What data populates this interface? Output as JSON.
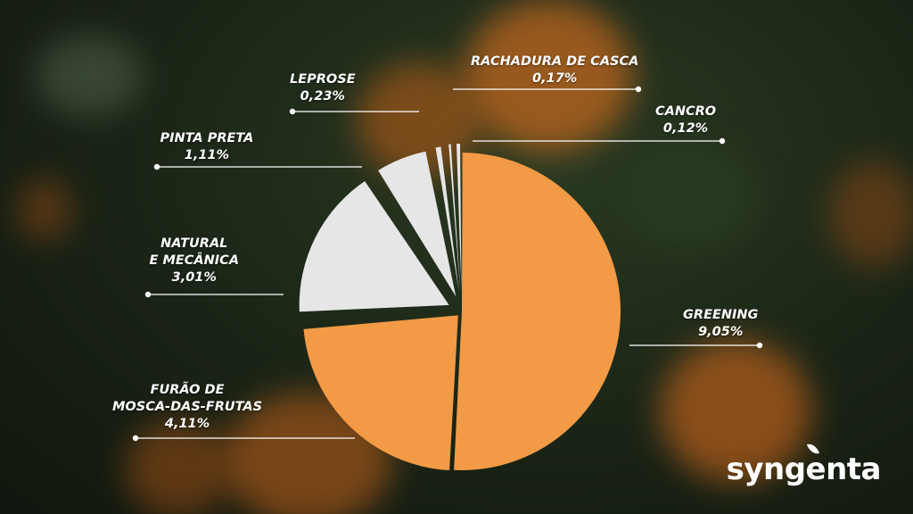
{
  "colors": {
    "orange": "#f29a45",
    "light": "#e6e6e6",
    "line": "#ffffff"
  },
  "chart_data": {
    "type": "pie",
    "title": "",
    "slices": [
      {
        "key": "greening",
        "line1": "GREENING",
        "line2": "",
        "value_label": "9,05%",
        "value": 9.05,
        "color": "#f29a45"
      },
      {
        "key": "furao",
        "line1": "FURÃO DE",
        "line2": "MOSCA-DAS-FRUTAS",
        "value_label": "4,11%",
        "value": 4.11,
        "color": "#f29a45"
      },
      {
        "key": "natural",
        "line1": "NATURAL",
        "line2": "E MECÂNICA",
        "value_label": "3,01%",
        "value": 3.01,
        "color": "#e6e6e6"
      },
      {
        "key": "pinta",
        "line1": "PINTA PRETA",
        "line2": "",
        "value_label": "1,11%",
        "value": 1.11,
        "color": "#e6e6e6"
      },
      {
        "key": "leprose",
        "line1": "LEPROSE",
        "line2": "",
        "value_label": "0,23%",
        "value": 0.23,
        "color": "#e6e6e6"
      },
      {
        "key": "rachadura",
        "line1": "RACHADURA DE CASCA",
        "line2": "",
        "value_label": "0,17%",
        "value": 0.17,
        "color": "#e6e6e6"
      },
      {
        "key": "cancro",
        "line1": "CANCRO",
        "line2": "",
        "value_label": "0,12%",
        "value": 0.12,
        "color": "#e6e6e6"
      }
    ]
  },
  "logo": {
    "text": "syngenta"
  }
}
